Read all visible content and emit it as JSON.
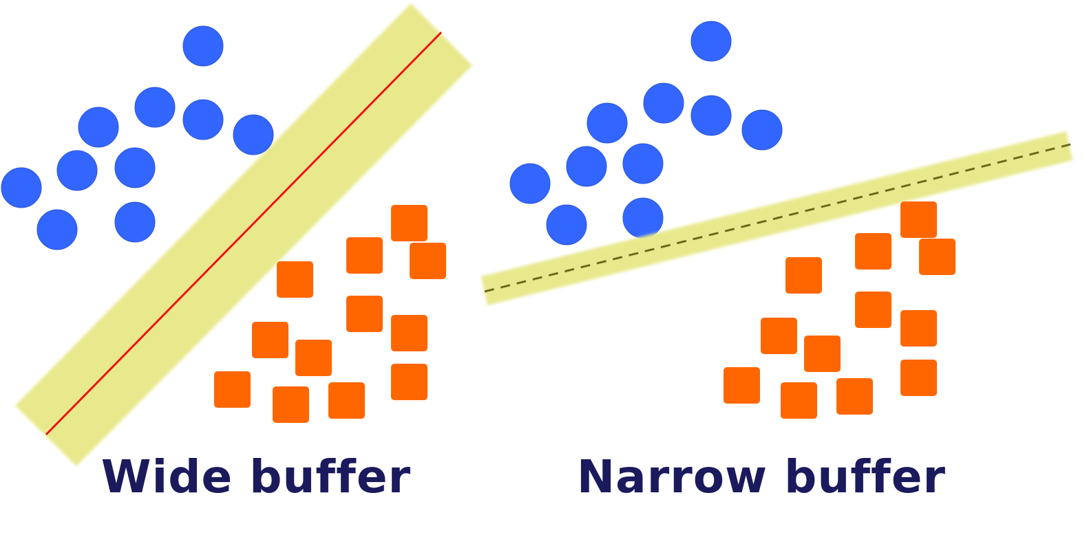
{
  "colors": {
    "background": "#ffffff",
    "class_a": "#3366ff",
    "class_b": "#ff6600",
    "buffer_band": "#e8e98c",
    "wide_boundary_line": "#ee1111",
    "narrow_boundary_line": "#6b6b1a",
    "caption_text": "#1a1a5c"
  },
  "panels": [
    {
      "caption": "Wide buffer",
      "class_a_shape": "circle",
      "class_b_shape": "rounded-square",
      "boundary_style": "solid"
    },
    {
      "caption": "Narrow buffer",
      "class_a_shape": "circle",
      "class_b_shape": "rounded-square",
      "boundary_style": "dashed"
    }
  ]
}
